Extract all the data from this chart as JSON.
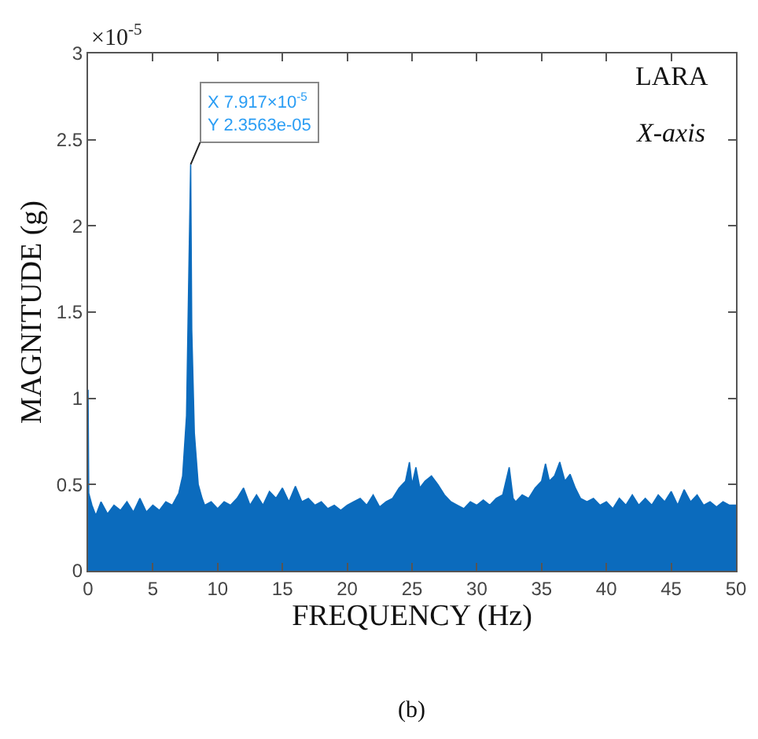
{
  "chart_data": {
    "type": "area",
    "xlabel": "FREQUENCY (Hz)",
    "ylabel": "MAGNITUDE (g)",
    "xlim": [
      0,
      50
    ],
    "xticks": [
      0,
      5,
      10,
      15,
      20,
      25,
      30,
      35,
      40,
      45,
      50
    ],
    "ylim": [
      0,
      3
    ],
    "yticks": [
      0,
      0.5,
      1,
      1.5,
      2,
      2.5,
      3
    ],
    "marker": "none",
    "annotations": [
      "×10$^{-5}$",
      "LARA",
      "X-axis",
      {
        "text": "X 7.917×10$^{-5}$\nY 2.3563e-05",
        "x": 7.917,
        "y": 2.3563
      },
      "(b)"
    ],
    "series": [
      {
        "color": "#0b6bbd",
        "x": [
          0,
          0.05,
          0.3,
          0.6,
          1,
          1.5,
          2,
          2.5,
          3,
          3.5,
          4,
          4.5,
          5,
          5.5,
          6,
          6.5,
          7,
          7.3,
          7.6,
          7.8,
          7.917,
          8.0,
          8.2,
          8.5,
          8.8,
          9,
          9.5,
          10,
          10.5,
          11,
          11.5,
          12,
          12.5,
          13,
          13.5,
          14,
          14.5,
          15,
          15.5,
          16,
          16.5,
          17,
          17.5,
          18,
          18.5,
          19,
          19.5,
          20,
          20.5,
          21,
          21.5,
          22,
          22.5,
          23,
          23.5,
          24,
          24.5,
          24.8,
          25,
          25.3,
          25.6,
          26,
          26.5,
          27,
          27.5,
          28,
          28.5,
          29,
          29.5,
          30,
          30.5,
          31,
          31.5,
          32,
          32.5,
          32.8,
          33,
          33.5,
          34,
          34.5,
          35,
          35.3,
          35.6,
          36,
          36.4,
          36.8,
          37.2,
          37.6,
          38,
          38.5,
          39,
          39.5,
          40,
          40.5,
          41,
          41.5,
          42,
          42.5,
          43,
          43.5,
          44,
          44.5,
          45,
          45.5,
          46,
          46.5,
          47,
          47.5,
          48,
          48.5,
          49,
          49.5,
          50
        ],
        "values": [
          1.05,
          0.45,
          0.38,
          0.32,
          0.4,
          0.33,
          0.38,
          0.35,
          0.4,
          0.34,
          0.42,
          0.34,
          0.38,
          0.35,
          0.4,
          0.38,
          0.45,
          0.55,
          0.9,
          1.83,
          2.3563,
          1.4,
          0.8,
          0.5,
          0.42,
          0.38,
          0.4,
          0.36,
          0.4,
          0.38,
          0.42,
          0.48,
          0.38,
          0.44,
          0.38,
          0.46,
          0.42,
          0.48,
          0.4,
          0.49,
          0.4,
          0.42,
          0.38,
          0.4,
          0.36,
          0.38,
          0.35,
          0.38,
          0.4,
          0.42,
          0.38,
          0.44,
          0.37,
          0.4,
          0.42,
          0.48,
          0.52,
          0.63,
          0.5,
          0.6,
          0.48,
          0.52,
          0.55,
          0.5,
          0.44,
          0.4,
          0.38,
          0.36,
          0.4,
          0.38,
          0.41,
          0.38,
          0.42,
          0.44,
          0.6,
          0.42,
          0.4,
          0.44,
          0.42,
          0.48,
          0.52,
          0.62,
          0.52,
          0.55,
          0.63,
          0.52,
          0.56,
          0.48,
          0.42,
          0.4,
          0.42,
          0.38,
          0.4,
          0.36,
          0.42,
          0.38,
          0.44,
          0.38,
          0.42,
          0.38,
          0.44,
          0.4,
          0.46,
          0.38,
          0.47,
          0.4,
          0.44,
          0.38,
          0.4,
          0.37,
          0.4,
          0.38,
          0.38
        ]
      }
    ]
  }
}
